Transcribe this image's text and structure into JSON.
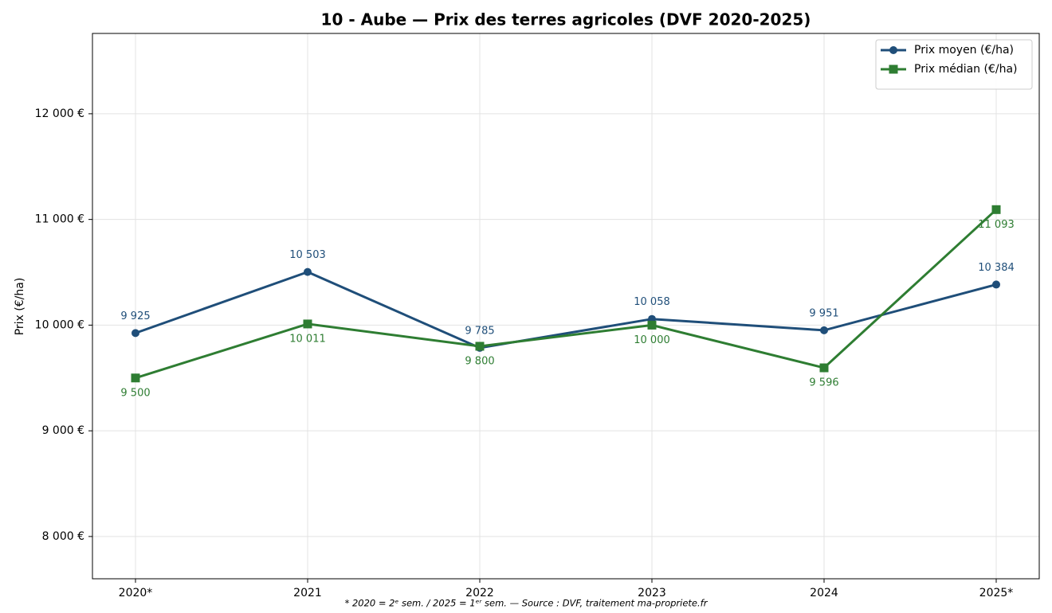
{
  "chart_data": {
    "type": "line",
    "title": "10 - Aube — Prix des terres agricoles (DVF 2020-2025)",
    "ylabel": "Prix (€/ha)",
    "footnote": "* 2020 = 2ᵉ sem. / 2025 = 1ᵉʳ sem. — Source : DVF, traitement ma-propriete.fr",
    "categories": [
      "2020*",
      "2021",
      "2022",
      "2023",
      "2024",
      "2025*"
    ],
    "series": [
      {
        "name": "Prix moyen (€/ha)",
        "color": "#1f4e79",
        "marker": "circle",
        "values": [
          9925,
          10503,
          9785,
          10058,
          9951,
          10384
        ],
        "value_labels": [
          "9 925",
          "10 503",
          "9 785",
          "10 058",
          "9 951",
          "10 384"
        ]
      },
      {
        "name": "Prix médian (€/ha)",
        "color": "#2e7d32",
        "marker": "square",
        "values": [
          9500,
          10011,
          9800,
          10000,
          9596,
          11093
        ],
        "value_labels": [
          "9 500",
          "10 011",
          "9 800",
          "10 000",
          "9 596",
          "11 093"
        ]
      }
    ],
    "ylim": [
      7600,
      12760
    ],
    "yticks": [
      {
        "value": 8000,
        "label": "8 000 €"
      },
      {
        "value": 9000,
        "label": "9 000 €"
      },
      {
        "value": 10000,
        "label": "10 000 €"
      },
      {
        "value": 11000,
        "label": "11 000 €"
      },
      {
        "value": 12000,
        "label": "12 000 €"
      }
    ],
    "grid": true,
    "legend": "upper right"
  }
}
